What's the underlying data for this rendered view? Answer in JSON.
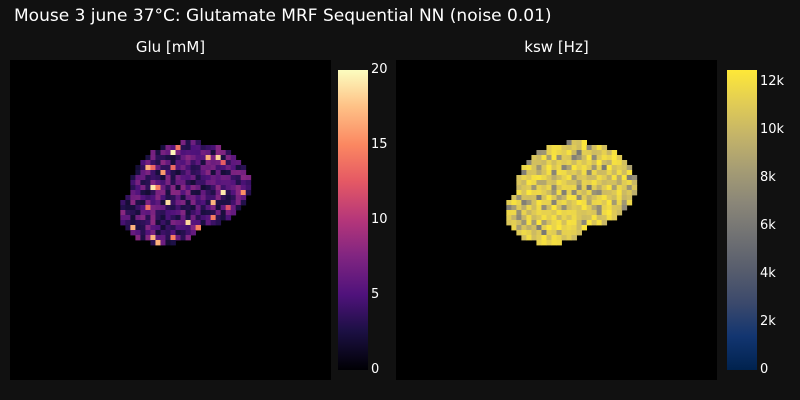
{
  "figure": {
    "title": "Mouse 3 june 37°C: Glutamate MRF Sequential NN (noise 0.01)"
  },
  "chart_data": [
    {
      "type": "heatmap",
      "title": "Glu [mM]",
      "colorscale": "magma",
      "zmin": 0,
      "zmax": 20,
      "colorbar_ticks": [
        "0",
        "5",
        "10",
        "15",
        "20"
      ],
      "colorbar_tick_values": [
        0,
        5,
        10,
        15,
        20
      ],
      "grid_size": 64,
      "typical_value_range": [
        2,
        8
      ],
      "hotspot_value_range": [
        12,
        20
      ],
      "background_value": null
    },
    {
      "type": "heatmap",
      "title": "ksw [Hz]",
      "colorscale": "cividis",
      "zmin": 0,
      "zmax": 12500,
      "colorbar_ticks": [
        "0",
        "2k",
        "4k",
        "6k",
        "8k",
        "10k",
        "12k"
      ],
      "colorbar_tick_values": [
        0,
        2000,
        4000,
        6000,
        8000,
        10000,
        12000
      ],
      "grid_size": 64,
      "typical_value_range": [
        10000,
        12500
      ],
      "lowspot_value_range": [
        6000,
        10000
      ],
      "background_value": null
    }
  ],
  "colors": {
    "page_background": "#111111",
    "plot_background": "#000000",
    "text": "#ffffff"
  }
}
